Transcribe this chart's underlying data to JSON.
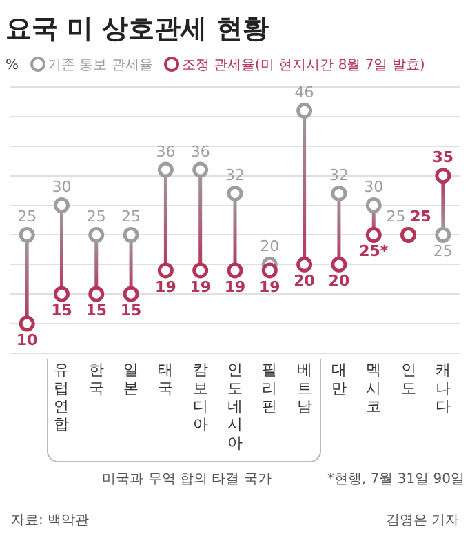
{
  "chart_data": {
    "type": "scatter",
    "title": "요국 미 상호관세 현황",
    "categories": [
      null,
      "유럽연합",
      "한국",
      "일본",
      "태국",
      "캄보디아",
      "인도네시아",
      "필리핀",
      "베트남",
      "대만",
      "멕시코",
      "인도",
      "캐나다"
    ],
    "series": [
      {
        "name": "기존 통보 관세율",
        "color": "#9e9e9e",
        "values": [
          25,
          30,
          25,
          25,
          36,
          36,
          32,
          20,
          46,
          32,
          30,
          25,
          25
        ],
        "value_labels": [
          "25",
          "30",
          "25",
          "25",
          "36",
          "36",
          "32",
          "20",
          "46",
          "32",
          "30",
          "25",
          "25"
        ]
      },
      {
        "name": "조정 관세율(미 현지시간 8월 7일 발효)",
        "color": "#b5345a",
        "values": [
          10,
          15,
          15,
          15,
          19,
          19,
          19,
          19,
          20,
          20,
          25,
          25,
          35
        ],
        "value_labels": [
          "10",
          "15",
          "15",
          "15",
          "19",
          "19",
          "19",
          "19",
          "20",
          "20",
          "25*",
          "25",
          "35"
        ]
      }
    ],
    "ylim": [
      5,
      50
    ],
    "yticks": [
      {
        "value": 5,
        "label": null
      },
      {
        "value": 10,
        "label": null
      },
      {
        "value": 15,
        "label": null
      },
      {
        "value": 20,
        "label": null
      },
      {
        "value": 25,
        "label": null
      },
      {
        "value": 30,
        "label": null
      },
      {
        "value": 35,
        "label": null
      },
      {
        "value": 40,
        "label": null
      },
      {
        "value": 45,
        "label": null
      },
      {
        "value": 50,
        "label": null
      }
    ],
    "tick_labels": "x",
    "grid": "y",
    "legend": "top left",
    "marker": "circle",
    "annotations": [
      "%",
      "*현행, 7월 31일 90일",
      "미국과 무역 합의 타결 국가",
      "자료: 백악관",
      "김영은 기자"
    ]
  }
}
